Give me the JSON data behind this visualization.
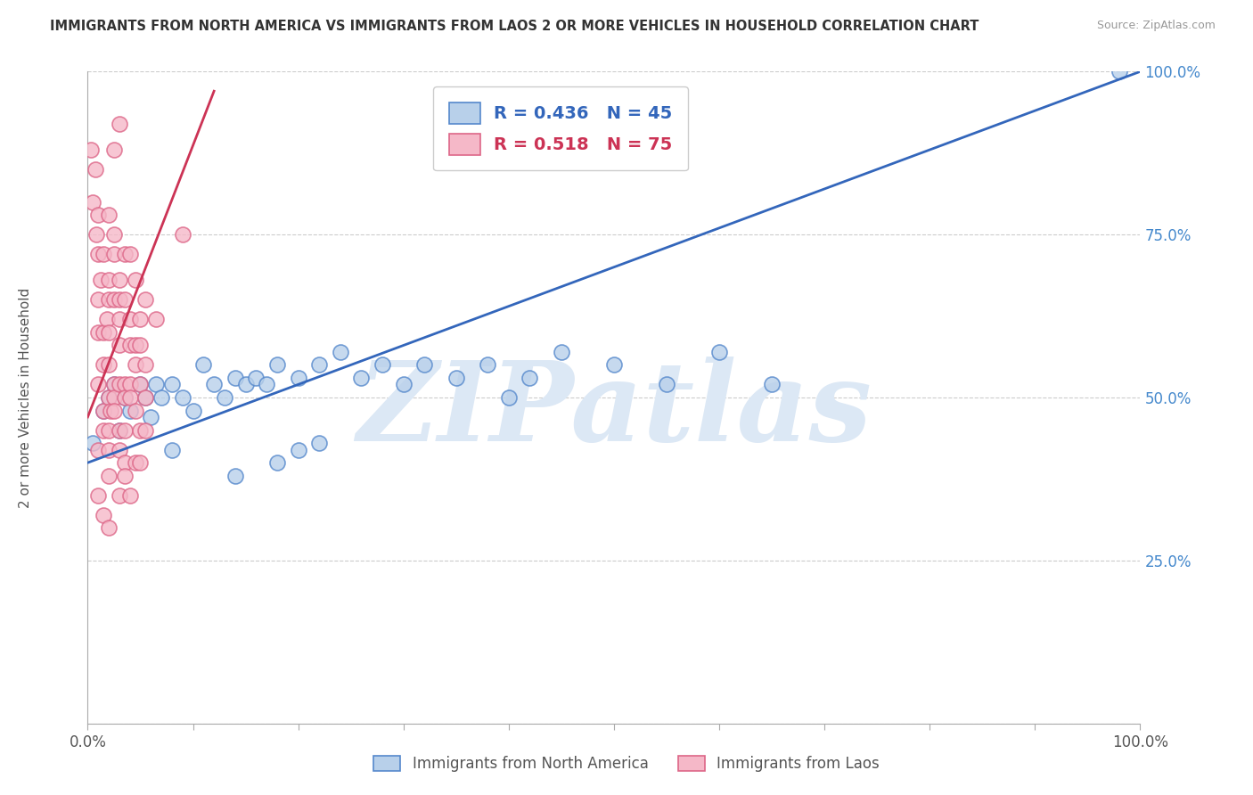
{
  "title": "IMMIGRANTS FROM NORTH AMERICA VS IMMIGRANTS FROM LAOS 2 OR MORE VEHICLES IN HOUSEHOLD CORRELATION CHART",
  "source": "Source: ZipAtlas.com",
  "ylabel": "2 or more Vehicles in Household",
  "xlim": [
    0,
    100
  ],
  "ylim": [
    0,
    100
  ],
  "blue_R": 0.436,
  "blue_N": 45,
  "pink_R": 0.518,
  "pink_N": 75,
  "blue_fill": "#b8d0ea",
  "pink_fill": "#f5b8c8",
  "blue_edge": "#5588cc",
  "pink_edge": "#dd6688",
  "blue_trend_color": "#3366bb",
  "pink_trend_color": "#cc3355",
  "watermark_text": "ZIPatlas",
  "watermark_color": "#dce8f5",
  "legend_blue_label": "Immigrants from North America",
  "legend_pink_label": "Immigrants from Laos",
  "blue_points": [
    [
      0.5,
      43
    ],
    [
      1.5,
      48
    ],
    [
      2.0,
      50
    ],
    [
      2.5,
      52
    ],
    [
      3.0,
      45
    ],
    [
      3.5,
      50
    ],
    [
      4.0,
      48
    ],
    [
      5.0,
      52
    ],
    [
      5.5,
      50
    ],
    [
      6.0,
      47
    ],
    [
      6.5,
      52
    ],
    [
      7.0,
      50
    ],
    [
      8.0,
      52
    ],
    [
      9.0,
      50
    ],
    [
      10.0,
      48
    ],
    [
      11.0,
      55
    ],
    [
      12.0,
      52
    ],
    [
      13.0,
      50
    ],
    [
      14.0,
      53
    ],
    [
      15.0,
      52
    ],
    [
      16.0,
      53
    ],
    [
      17.0,
      52
    ],
    [
      18.0,
      55
    ],
    [
      20.0,
      53
    ],
    [
      22.0,
      55
    ],
    [
      24.0,
      57
    ],
    [
      26.0,
      53
    ],
    [
      28.0,
      55
    ],
    [
      30.0,
      52
    ],
    [
      32.0,
      55
    ],
    [
      35.0,
      53
    ],
    [
      38.0,
      55
    ],
    [
      40.0,
      50
    ],
    [
      42.0,
      53
    ],
    [
      45.0,
      57
    ],
    [
      14.0,
      38
    ],
    [
      18.0,
      40
    ],
    [
      20.0,
      42
    ],
    [
      22.0,
      43
    ],
    [
      8.0,
      42
    ],
    [
      50.0,
      55
    ],
    [
      55.0,
      52
    ],
    [
      60.0,
      57
    ],
    [
      65.0,
      52
    ],
    [
      98.0,
      100
    ]
  ],
  "pink_points": [
    [
      0.3,
      88
    ],
    [
      0.5,
      80
    ],
    [
      0.7,
      85
    ],
    [
      0.8,
      75
    ],
    [
      1.0,
      78
    ],
    [
      1.0,
      72
    ],
    [
      1.0,
      65
    ],
    [
      1.0,
      60
    ],
    [
      1.0,
      52
    ],
    [
      1.0,
      42
    ],
    [
      1.0,
      35
    ],
    [
      1.2,
      68
    ],
    [
      1.5,
      72
    ],
    [
      1.5,
      60
    ],
    [
      1.5,
      55
    ],
    [
      1.5,
      48
    ],
    [
      1.5,
      45
    ],
    [
      1.5,
      32
    ],
    [
      1.8,
      62
    ],
    [
      2.0,
      78
    ],
    [
      2.0,
      68
    ],
    [
      2.0,
      65
    ],
    [
      2.0,
      60
    ],
    [
      2.0,
      55
    ],
    [
      2.0,
      50
    ],
    [
      2.0,
      45
    ],
    [
      2.0,
      42
    ],
    [
      2.0,
      38
    ],
    [
      2.0,
      30
    ],
    [
      2.2,
      48
    ],
    [
      2.5,
      88
    ],
    [
      2.5,
      75
    ],
    [
      2.5,
      72
    ],
    [
      2.5,
      65
    ],
    [
      2.5,
      52
    ],
    [
      2.5,
      50
    ],
    [
      2.5,
      48
    ],
    [
      3.0,
      92
    ],
    [
      3.0,
      68
    ],
    [
      3.0,
      65
    ],
    [
      3.0,
      62
    ],
    [
      3.0,
      58
    ],
    [
      3.0,
      52
    ],
    [
      3.0,
      45
    ],
    [
      3.0,
      42
    ],
    [
      3.0,
      35
    ],
    [
      3.5,
      72
    ],
    [
      3.5,
      65
    ],
    [
      3.5,
      52
    ],
    [
      3.5,
      50
    ],
    [
      3.5,
      45
    ],
    [
      3.5,
      40
    ],
    [
      3.5,
      38
    ],
    [
      4.0,
      72
    ],
    [
      4.0,
      62
    ],
    [
      4.0,
      58
    ],
    [
      4.0,
      52
    ],
    [
      4.0,
      50
    ],
    [
      4.0,
      35
    ],
    [
      4.5,
      68
    ],
    [
      4.5,
      58
    ],
    [
      4.5,
      55
    ],
    [
      4.5,
      48
    ],
    [
      4.5,
      40
    ],
    [
      5.0,
      62
    ],
    [
      5.0,
      58
    ],
    [
      5.0,
      52
    ],
    [
      5.0,
      45
    ],
    [
      5.0,
      40
    ],
    [
      5.5,
      65
    ],
    [
      5.5,
      55
    ],
    [
      5.5,
      50
    ],
    [
      5.5,
      45
    ],
    [
      6.5,
      62
    ],
    [
      9.0,
      75
    ]
  ],
  "blue_trend_x": [
    0,
    100
  ],
  "blue_trend_y": [
    40,
    100
  ],
  "pink_trend_x": [
    0,
    12
  ],
  "pink_trend_y": [
    47,
    97
  ]
}
